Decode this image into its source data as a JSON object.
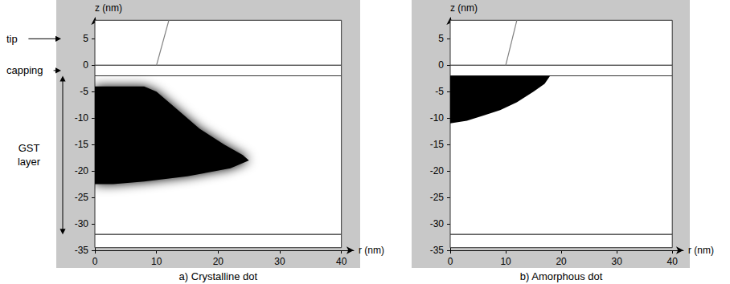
{
  "chart_data": [
    {
      "type": "cross_section",
      "title": "a) Crystalline dot",
      "x_label": "r (nm)",
      "y_label": "z (nm)",
      "xlim": [
        0,
        42
      ],
      "xticks": [
        0,
        10,
        20,
        30,
        40
      ],
      "ylim": [
        -35,
        9
      ],
      "yticks": [
        5,
        0,
        -5,
        -10,
        -15,
        -20,
        -25,
        -30,
        -35
      ],
      "grid": false,
      "layers": {
        "color": "#ffffff",
        "r": [
          0,
          40
        ],
        "z": [
          [
            0,
            8.5
          ],
          [
            -2,
            0
          ],
          [
            -32,
            -2
          ],
          [
            -34.5,
            -32
          ]
        ]
      },
      "tip": {
        "color": "#808080",
        "r": [
          10,
          12
        ],
        "z": [
          0,
          8.5
        ]
      },
      "dot": {
        "type": "diffuse",
        "color": "#000000",
        "r": [
          0,
          8,
          10,
          13,
          17,
          21,
          24,
          25,
          22,
          15,
          8,
          3,
          0
        ],
        "z": [
          -4,
          -4,
          -5,
          -8,
          -12,
          -15,
          -17,
          -18,
          -19.5,
          -21,
          -22,
          -22.5,
          -22.5
        ]
      },
      "annotations": [
        {
          "text": "tip",
          "z": 5
        },
        {
          "text": "capping",
          "z": -1
        },
        {
          "text": "GST layer",
          "z_from": -2,
          "z_to": -32
        }
      ]
    },
    {
      "type": "cross_section",
      "title": "b) Amorphous dot",
      "x_label": "r (nm)",
      "y_label": "z (nm)",
      "xlim": [
        0,
        42
      ],
      "xticks": [
        0,
        10,
        20,
        30,
        40
      ],
      "ylim": [
        -35,
        9
      ],
      "yticks": [
        5,
        0,
        -5,
        -10,
        -15,
        -20,
        -25,
        -30,
        -35
      ],
      "grid": false,
      "layers": {
        "color": "#ffffff",
        "r": [
          0,
          40
        ],
        "z": [
          [
            0,
            8.5
          ],
          [
            -2,
            0
          ],
          [
            -32,
            -2
          ],
          [
            -34.5,
            -32
          ]
        ]
      },
      "tip": {
        "color": "#808080",
        "r": [
          10,
          12
        ],
        "z": [
          0,
          8.5
        ]
      },
      "dot": {
        "type": "sharp",
        "color": "#000000",
        "r": [
          0,
          18,
          17,
          15,
          12,
          9,
          6,
          3,
          0
        ],
        "z": [
          -2,
          -2,
          -3.5,
          -5,
          -7,
          -8.5,
          -9.5,
          -10.5,
          -11
        ]
      }
    }
  ]
}
